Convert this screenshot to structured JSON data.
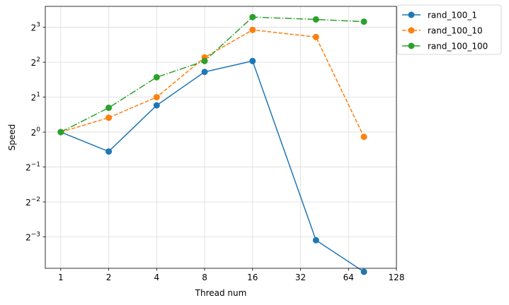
{
  "chart_data": {
    "type": "line",
    "xlabel": "Thread num",
    "ylabel": "Speed",
    "xscale": "log2",
    "yscale": "log2",
    "xlim": [
      0.8,
      128
    ],
    "ylim_exponents": [
      -3.9,
      3.6
    ],
    "xticks": [
      1,
      2,
      4,
      8,
      16,
      32,
      64,
      128
    ],
    "xtick_labels": [
      "1",
      "2",
      "4",
      "8",
      "16",
      "32",
      "64",
      "128"
    ],
    "ytick_exponents": [
      -3,
      -2,
      -1,
      0,
      1,
      2,
      3
    ],
    "ytick_base": "2",
    "grid": true,
    "legend_position": "outside-top-right",
    "x": [
      1,
      2,
      4,
      8,
      16,
      40,
      80
    ],
    "series": [
      {
        "name": "rand_100_1",
        "color": "#1f77b4",
        "linestyle": "solid",
        "marker": "circle",
        "values": [
          1.0,
          0.68,
          1.7,
          3.3,
          4.1,
          0.117,
          0.0625
        ]
      },
      {
        "name": "rand_100_10",
        "color": "#ff7f0e",
        "linestyle": "dashed",
        "marker": "circle",
        "values": [
          1.0,
          1.33,
          2.0,
          4.4,
          7.6,
          6.6,
          0.91
        ]
      },
      {
        "name": "rand_100_100",
        "color": "#2ca02c",
        "linestyle": "dashdot",
        "marker": "circle",
        "values": [
          1.0,
          1.62,
          2.97,
          4.1,
          9.8,
          9.35,
          8.95
        ]
      }
    ]
  }
}
